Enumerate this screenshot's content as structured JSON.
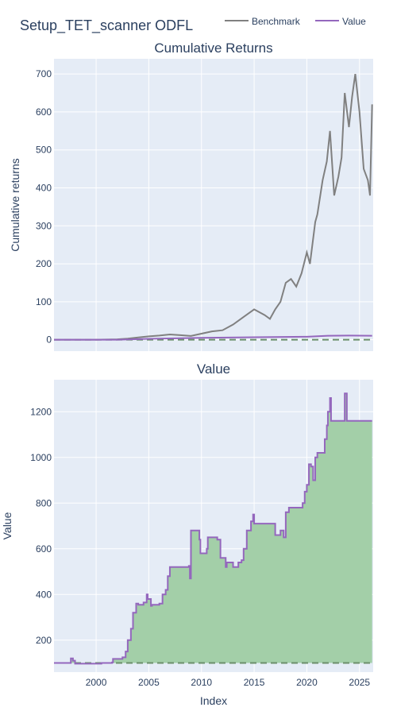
{
  "figure": {
    "title": "Setup_TET_scanner ODFL",
    "legend": [
      {
        "name": "Benchmark",
        "color": "#808080"
      },
      {
        "name": "Value",
        "color": "#9467bd"
      }
    ],
    "x_title": "Index"
  },
  "colors": {
    "plot_bg": "#e5ecf6",
    "grid": "#ffffff",
    "benchmark": "#808080",
    "value": "#9467bd",
    "value_fill": "#a3cfa8",
    "baseline": "#6b8f6b"
  },
  "chart_data": [
    {
      "type": "line",
      "title": "Cumulative Returns",
      "xlabel": "",
      "ylabel": "Cumulative returns",
      "xlim": [
        1996.0,
        2026.3
      ],
      "ylim": [
        -30,
        740
      ],
      "x_ticks": [
        2000,
        2005,
        2010,
        2015,
        2020,
        2025
      ],
      "y_ticks": [
        0,
        100,
        200,
        300,
        400,
        500,
        600,
        700
      ],
      "grid": true,
      "legend_position": "top",
      "baseline": 0,
      "series": [
        {
          "name": "Benchmark",
          "x": [
            1996.0,
            1998,
            2000,
            2002,
            2003,
            2004,
            2005,
            2006,
            2007,
            2008,
            2009,
            2010,
            2011,
            2012,
            2013,
            2014,
            2015,
            2016,
            2016.5,
            2017,
            2017.5,
            2018,
            2018.5,
            2019,
            2019.5,
            2020,
            2020.3,
            2020.8,
            2021,
            2021.5,
            2021.9,
            2022.2,
            2022.6,
            2023,
            2023.3,
            2023.6,
            2024,
            2024.3,
            2024.6,
            2025,
            2025.4,
            2025.8,
            2026.0,
            2026.2
          ],
          "values": [
            0,
            0,
            0,
            1,
            3,
            6,
            9,
            11,
            14,
            12,
            10,
            16,
            22,
            25,
            40,
            60,
            80,
            65,
            55,
            80,
            100,
            150,
            160,
            140,
            175,
            230,
            200,
            310,
            330,
            420,
            470,
            550,
            380,
            430,
            480,
            650,
            560,
            640,
            700,
            600,
            450,
            420,
            380,
            620
          ]
        },
        {
          "name": "Value",
          "x": [
            1996.0,
            2000,
            2002,
            2005,
            2010,
            2015,
            2020,
            2022,
            2024,
            2026.2
          ],
          "values": [
            0,
            0,
            0.2,
            2.5,
            5,
            6.5,
            8,
            10.5,
            11,
            10.6
          ]
        }
      ]
    },
    {
      "type": "area",
      "title": "Value",
      "xlabel": "Index",
      "ylabel": "Value",
      "xlim": [
        1996.0,
        2026.3
      ],
      "ylim": [
        60,
        1340
      ],
      "x_ticks": [
        2000,
        2005,
        2010,
        2015,
        2020,
        2025
      ],
      "y_ticks": [
        200,
        400,
        600,
        800,
        1000,
        1200
      ],
      "grid": true,
      "baseline": 100,
      "series": [
        {
          "name": "Value",
          "x": [
            1996.0,
            1997.5,
            1997.6,
            1997.8,
            1998.0,
            2000.5,
            2001.5,
            2001.6,
            2002.5,
            2002.8,
            2003.0,
            2003.3,
            2003.5,
            2003.8,
            2004.0,
            2004.5,
            2004.8,
            2004.9,
            2005.2,
            2005.3,
            2006.0,
            2006.3,
            2006.6,
            2006.8,
            2007.0,
            2008.8,
            2008.9,
            2009.0,
            2009.8,
            2009.9,
            2010.5,
            2010.6,
            2011.5,
            2011.6,
            2011.8,
            2012.3,
            2012.4,
            2013.0,
            2013.1,
            2013.5,
            2013.8,
            2014.0,
            2014.3,
            2014.7,
            2014.9,
            2015.0,
            2016.0,
            2016.2,
            2017.0,
            2017.5,
            2017.8,
            2018.0,
            2018.3,
            2019.5,
            2019.6,
            2019.8,
            2020.0,
            2020.2,
            2020.4,
            2020.6,
            2020.8,
            2021.0,
            2021.5,
            2021.7,
            2021.9,
            2022.0,
            2022.2,
            2022.3,
            2022.4,
            2023.5,
            2023.6,
            2023.8,
            2024.0,
            2026.2
          ],
          "values": [
            100,
            100,
            120,
            110,
            97,
            100,
            102,
            118,
            125,
            150,
            200,
            250,
            320,
            360,
            355,
            365,
            400,
            380,
            350,
            355,
            360,
            400,
            420,
            480,
            520,
            525,
            470,
            680,
            640,
            580,
            600,
            650,
            640,
            640,
            560,
            520,
            540,
            520,
            520,
            540,
            550,
            600,
            680,
            720,
            750,
            710,
            710,
            710,
            660,
            680,
            650,
            760,
            780,
            780,
            800,
            850,
            880,
            970,
            960,
            900,
            1000,
            1020,
            1020,
            1080,
            1140,
            1200,
            1260,
            1160,
            1160,
            1160,
            1280,
            1160,
            1160,
            1160
          ]
        }
      ]
    }
  ]
}
